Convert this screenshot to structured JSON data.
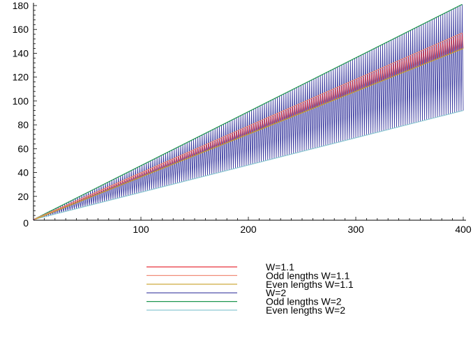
{
  "chart_data": {
    "type": "line",
    "title": "",
    "xlabel": "",
    "ylabel": "",
    "xlim": [
      0,
      410
    ],
    "ylim": [
      0,
      184
    ],
    "x_ticks": [
      0,
      100,
      200,
      300,
      400
    ],
    "y_ticks": [
      0,
      20,
      40,
      60,
      80,
      100,
      120,
      140,
      160,
      180
    ],
    "x_tick_labels": [
      "100",
      "200",
      "300",
      "400"
    ],
    "y_tick_labels": [
      "0",
      "20",
      "40",
      "60",
      "80",
      "100",
      "120",
      "140",
      "160",
      "180"
    ],
    "grid": false,
    "legend_position": "bottom",
    "series": [
      {
        "name": "W=1.1",
        "color": "#e8323c",
        "x": [
          0,
          400
        ],
        "y": [
          0,
          151
        ]
      },
      {
        "name": "Odd lengths W=1.1",
        "color": "#f08c78",
        "x": [
          1,
          399
        ],
        "y": [
          1,
          157
        ]
      },
      {
        "name": "Even lengths W=1.1",
        "color": "#c8a028",
        "x": [
          2,
          400
        ],
        "y": [
          1,
          144
        ]
      },
      {
        "name": "W=2",
        "color": "#3c3ca0",
        "x": [
          0,
          400
        ],
        "y": [
          0,
          138
        ]
      },
      {
        "name": "Odd lengths W=2",
        "color": "#1e9650",
        "x": [
          1,
          399
        ],
        "y": [
          1,
          181
        ]
      },
      {
        "name": "Even lengths W=2",
        "color": "#8cc8d2",
        "x": [
          2,
          400
        ],
        "y": [
          1,
          92
        ]
      }
    ]
  }
}
